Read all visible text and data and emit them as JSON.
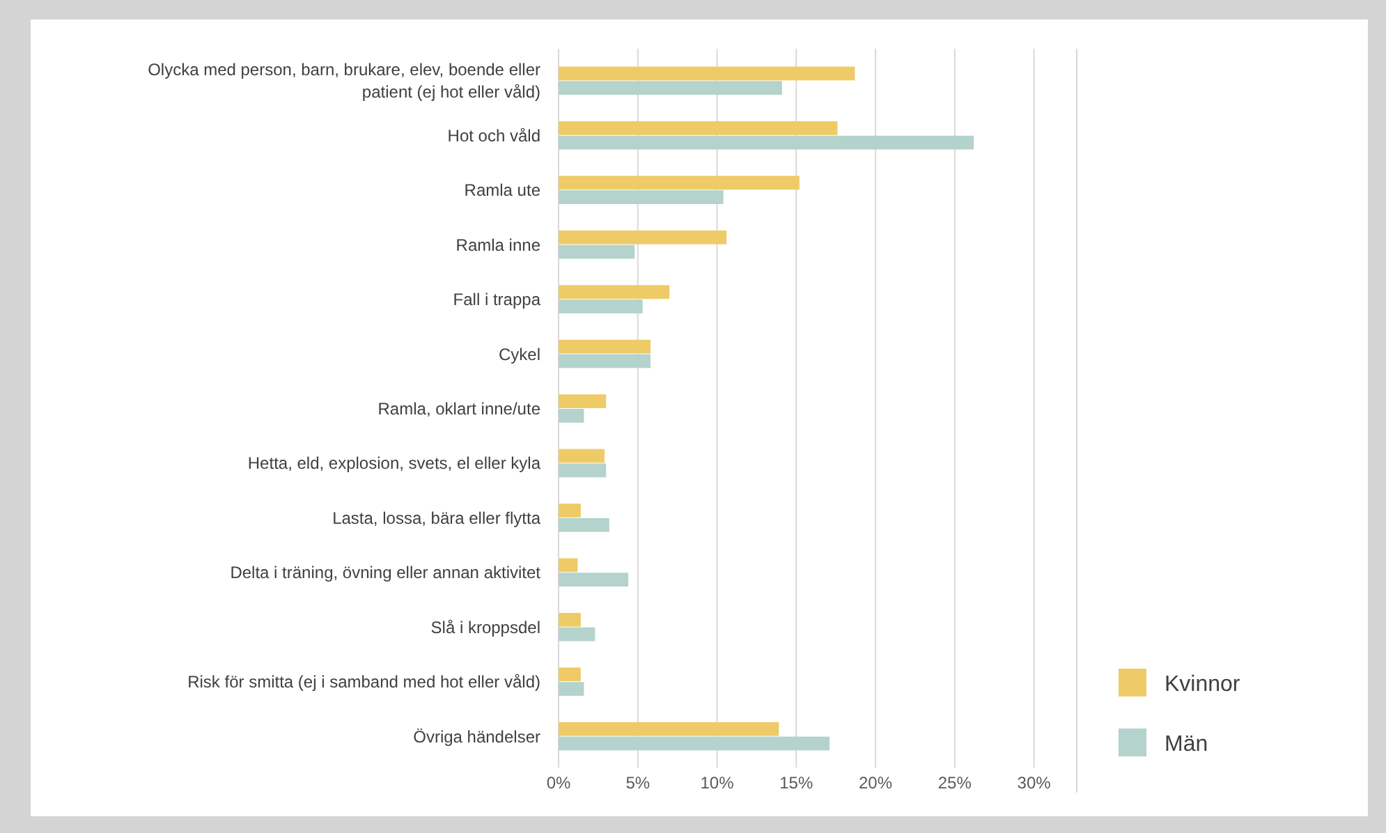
{
  "chart_data": {
    "type": "bar",
    "orientation": "horizontal",
    "categories": [
      "Olycka med person, barn, brukare, elev, boende eller patient (ej hot eller våld)",
      "Hot och våld",
      "Ramla ute",
      "Ramla inne",
      "Fall i trappa",
      "Cykel",
      "Ramla, oklart inne/ute",
      "Hetta, eld, explosion, svets, el eller kyla",
      "Lasta, lossa, bära eller flytta",
      "Delta i träning, övning eller annan aktivitet",
      "Slå i kroppsdel",
      "Risk för smitta (ej i samband med hot eller våld)",
      "Övriga händelser"
    ],
    "series": [
      {
        "name": "Kvinnor",
        "color": "#eecb67",
        "values": [
          18.7,
          17.6,
          15.2,
          10.6,
          7.0,
          5.8,
          3.0,
          2.9,
          1.4,
          1.2,
          1.4,
          1.4,
          13.9
        ]
      },
      {
        "name": "Män",
        "color": "#b3d3cc",
        "values": [
          14.1,
          26.2,
          10.4,
          4.8,
          5.3,
          5.8,
          1.6,
          3.0,
          3.2,
          4.4,
          2.3,
          1.6,
          17.1
        ]
      }
    ],
    "xlim": [
      0,
      32.7
    ],
    "xticks": [
      {
        "value": 0,
        "label": "0%"
      },
      {
        "value": 5,
        "label": "5%"
      },
      {
        "value": 10,
        "label": "10%"
      },
      {
        "value": 15,
        "label": "15%"
      },
      {
        "value": 20,
        "label": "20%"
      },
      {
        "value": 25,
        "label": "25%"
      },
      {
        "value": 30,
        "label": "30%"
      }
    ],
    "grid": "x",
    "legend": "right"
  }
}
